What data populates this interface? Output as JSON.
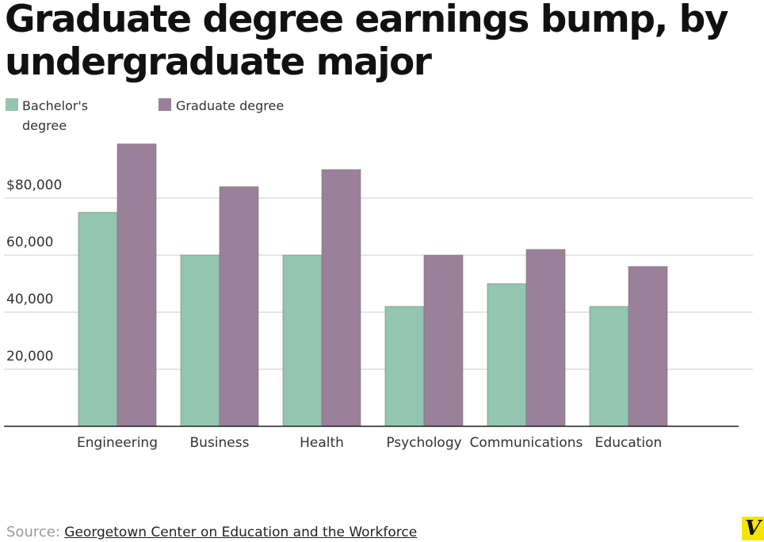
{
  "chart_data": {
    "type": "bar",
    "title": "Graduate degree earnings bump, by undergraduate major",
    "categories": [
      "Engineering",
      "Business",
      "Health",
      "Psychology",
      "Communications",
      "Education"
    ],
    "series": [
      {
        "name": "Bachelor's degree",
        "color": "#93c5b0",
        "values": [
          75000,
          60000,
          60000,
          42000,
          50000,
          42000
        ]
      },
      {
        "name": "Graduate degree",
        "color": "#9a8098",
        "values": [
          99000,
          84000,
          90000,
          60000,
          62000,
          56000
        ]
      }
    ],
    "ylim": [
      0,
      100000
    ],
    "yticks": [
      {
        "value": 20000,
        "label": "20,000"
      },
      {
        "value": 40000,
        "label": "40,000"
      },
      {
        "value": 60000,
        "label": "60,000"
      },
      {
        "value": 80000,
        "label": "$80,000"
      }
    ],
    "grid": true,
    "source_label": "Source:",
    "source": "Georgetown Center on Education and the Workforce"
  }
}
